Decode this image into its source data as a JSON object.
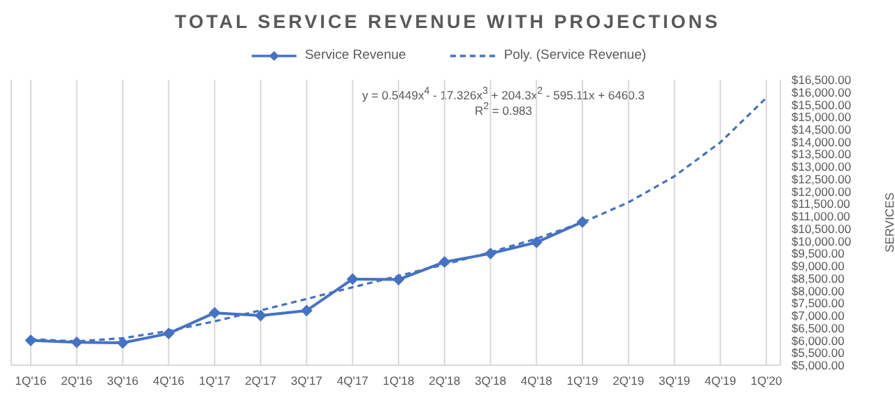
{
  "chart_data": {
    "type": "line",
    "title": "TOTAL SERVICE REVENUE WITH PROJECTIONS",
    "y2label": "SERVICES",
    "categories": [
      "1Q'16",
      "2Q'16",
      "3Q'16",
      "4Q'16",
      "1Q'17",
      "2Q'17",
      "3Q'17",
      "4Q'17",
      "1Q'18",
      "2Q'18",
      "3Q'18",
      "4Q'18",
      "1Q'19",
      "2Q'19",
      "3Q'19",
      "4Q'19",
      "1Q'20"
    ],
    "series": [
      {
        "name": "Service Revenue",
        "color": "#4472c4",
        "axis": "y2",
        "marker": "diamond",
        "line_style": "solid",
        "values": [
          6000,
          5920,
          5900,
          6280,
          7110,
          7000,
          7200,
          8470,
          8450,
          9160,
          9500,
          9950,
          10770,
          null,
          null,
          null,
          null
        ]
      },
      {
        "name": "Poly. (Service Revenue)",
        "color": "#4472c4",
        "axis": "y2",
        "marker": "none",
        "line_style": "dashed",
        "values": [
          6050,
          5960,
          6090,
          6380,
          6770,
          7210,
          7670,
          8140,
          8600,
          9060,
          9550,
          10100,
          10750,
          11560,
          12610,
          13980,
          15770
        ]
      }
    ],
    "y2lim": [
      5000,
      16500
    ],
    "y2ticks": [
      {
        "value": 5000,
        "label": "$5,000.00"
      },
      {
        "value": 5500,
        "label": "$5,500.00"
      },
      {
        "value": 6000,
        "label": "$6,000.00"
      },
      {
        "value": 6500,
        "label": "$6,500.00"
      },
      {
        "value": 7000,
        "label": "$7,000.00"
      },
      {
        "value": 7500,
        "label": "$7,500.00"
      },
      {
        "value": 8000,
        "label": "$8,000.00"
      },
      {
        "value": 8500,
        "label": "$8,500.00"
      },
      {
        "value": 9000,
        "label": "$9,000.00"
      },
      {
        "value": 9500,
        "label": "$9,500.00"
      },
      {
        "value": 10000,
        "label": "$10,000.00"
      },
      {
        "value": 10500,
        "label": "$10,500.00"
      },
      {
        "value": 11000,
        "label": "$11,000.00"
      },
      {
        "value": 11500,
        "label": "$11,500.00"
      },
      {
        "value": 12000,
        "label": "$12,000.00"
      },
      {
        "value": 12500,
        "label": "$12,500.00"
      },
      {
        "value": 13000,
        "label": "$13,000.00"
      },
      {
        "value": 13500,
        "label": "$13,500.00"
      },
      {
        "value": 14000,
        "label": "$14,000.00"
      },
      {
        "value": 14500,
        "label": "$14,500.00"
      },
      {
        "value": 15000,
        "label": "$15,000.00"
      },
      {
        "value": 15500,
        "label": "$15,500.00"
      },
      {
        "value": 16000,
        "label": "$16,000.00"
      },
      {
        "value": 16500,
        "label": "$16,500.00"
      }
    ],
    "annotations": [
      "y = 0.5449x$^{4}$ - 17.326x$^{3}$ + 204.3x$^{2}$ - 595.11x + 6460.3",
      "R$^{2}$ = 0.983"
    ],
    "grid": "x",
    "legend": "top"
  }
}
